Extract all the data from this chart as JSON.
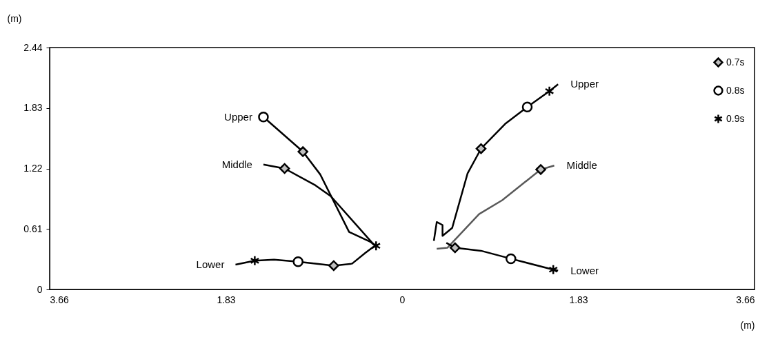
{
  "chart_data": {
    "type": "line",
    "xlabel": "(m)",
    "ylabel": "(m)",
    "xlim": [
      -3.66,
      3.66
    ],
    "ylim": [
      0,
      2.44
    ],
    "xticks": [
      {
        "value": -3.66,
        "label": "3.66"
      },
      {
        "value": -1.83,
        "label": "1.83"
      },
      0,
      1.83,
      3.66
    ],
    "yticks": [
      0,
      0.61,
      1.22,
      1.83,
      2.44
    ],
    "grid": false,
    "legend": "top right",
    "series": [
      {
        "color": "#000000",
        "x": [
          -1.44,
          -1.03,
          -0.85,
          -0.55,
          -0.33,
          -0.27
        ],
        "values": [
          1.74,
          1.39,
          1.16,
          0.58,
          0.48,
          0.44
        ]
      },
      {
        "color": "#000000",
        "x": [
          -1.44,
          -1.22,
          -0.9,
          -0.74,
          -0.31,
          -0.27
        ],
        "values": [
          1.26,
          1.22,
          1.05,
          0.94,
          0.47,
          0.44
        ]
      },
      {
        "color": "#000000",
        "x": [
          -1.73,
          -1.53,
          -1.33,
          -1.08,
          -0.71,
          -0.52,
          -0.38,
          -0.27
        ],
        "values": [
          0.25,
          0.29,
          0.3,
          0.28,
          0.24,
          0.26,
          0.37,
          0.45
        ]
      },
      {
        "color": "#000000",
        "x": [
          0.33,
          0.36,
          0.42,
          0.42,
          0.52,
          0.68,
          0.82,
          1.07,
          1.3,
          1.53,
          1.62
        ],
        "values": [
          0.49,
          0.68,
          0.65,
          0.54,
          0.62,
          1.17,
          1.42,
          1.67,
          1.84,
          2.0,
          2.07
        ]
      },
      {
        "color": "#595959",
        "x": [
          0.36,
          0.47,
          0.8,
          1.04,
          1.44,
          1.58
        ],
        "values": [
          0.41,
          0.42,
          0.76,
          0.9,
          1.21,
          1.25
        ]
      },
      {
        "color": "#000000",
        "x": [
          0.46,
          0.55,
          0.82,
          1.13,
          1.57,
          1.62
        ],
        "values": [
          0.47,
          0.42,
          0.39,
          0.31,
          0.2,
          0.19
        ]
      },
      {
        "type": "scatter",
        "name": "0.7s",
        "marker": "diamond",
        "color": "#bfbfbf",
        "x": [
          -1.03,
          -1.22,
          -0.71,
          0.82,
          1.44,
          0.55
        ],
        "values": [
          1.39,
          1.22,
          0.24,
          1.42,
          1.21,
          0.42
        ]
      },
      {
        "type": "scatter",
        "name": "0.8s",
        "marker": "circle",
        "color": "#000000",
        "x": [
          -1.44,
          -1.08,
          1.3,
          1.13
        ],
        "values": [
          1.74,
          0.28,
          1.84,
          0.31
        ]
      },
      {
        "type": "scatter",
        "name": "0.9s",
        "marker": "cross",
        "color": "#000000",
        "x": [
          -1.53,
          -0.27,
          1.53,
          1.57
        ],
        "values": [
          0.29,
          0.44,
          2.0,
          0.2
        ]
      }
    ],
    "annotations": [
      {
        "text": "Upper",
        "x": -1.44,
        "y": 1.74
      },
      {
        "text": "Middle",
        "x": -1.44,
        "y": 1.26
      },
      {
        "text": "Lower",
        "x": -1.73,
        "y": 0.25
      },
      {
        "text": "Upper",
        "x": 1.62,
        "y": 2.07
      },
      {
        "text": "Middle",
        "x": 1.58,
        "y": 1.25
      },
      {
        "text": "Lower",
        "x": 1.62,
        "y": 0.19
      }
    ]
  }
}
